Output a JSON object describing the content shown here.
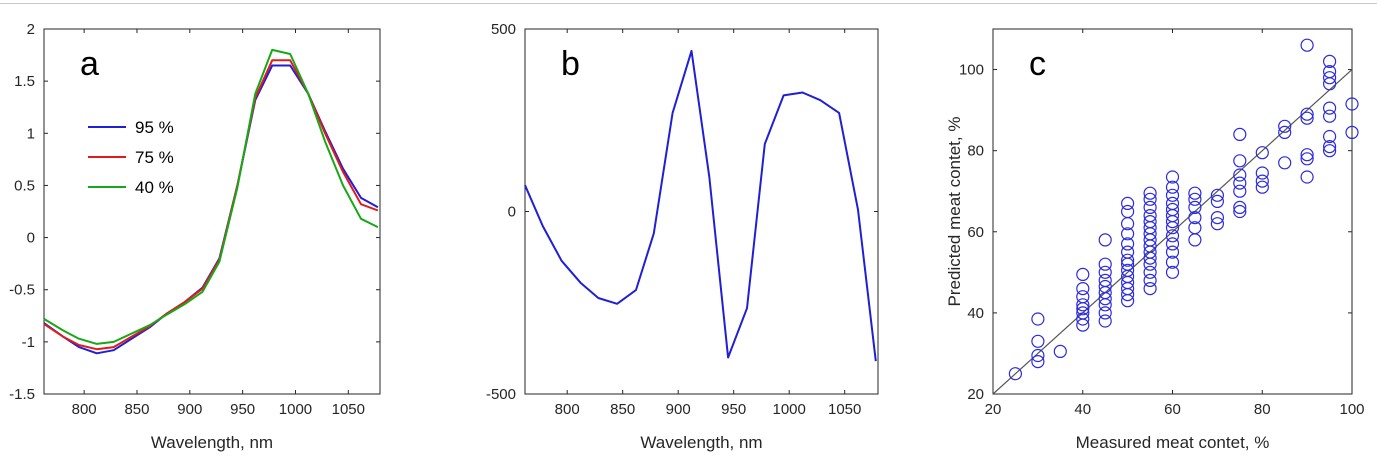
{
  "chart_data": [
    {
      "type": "line",
      "panel_label": "a",
      "xlabel": "Wavelength, nm",
      "ylabel": "",
      "xlim": [
        762,
        1080
      ],
      "ylim": [
        -1.5,
        2
      ],
      "xticks": [
        800,
        850,
        900,
        950,
        1000,
        1050
      ],
      "yticks": [
        -1.5,
        -1,
        -0.5,
        0,
        0.5,
        1,
        1.5,
        2
      ],
      "ytick_labels": [
        "-1.5",
        "-1",
        "-0.5",
        "0",
        "0.5",
        "1",
        "1.5",
        "2"
      ],
      "legend_position": "upper-left",
      "x": [
        762,
        780,
        795,
        812,
        828,
        845,
        862,
        878,
        895,
        912,
        928,
        945,
        962,
        978,
        995,
        1012,
        1028,
        1045,
        1062,
        1078
      ],
      "series": [
        {
          "name": "95 %",
          "color": "#1f1fd6",
          "values": [
            -0.82,
            -0.95,
            -1.05,
            -1.11,
            -1.08,
            -0.97,
            -0.86,
            -0.73,
            -0.62,
            -0.48,
            -0.2,
            0.5,
            1.32,
            1.65,
            1.65,
            1.38,
            1.02,
            0.66,
            0.38,
            0.29
          ]
        },
        {
          "name": "75 %",
          "color": "#e01b1b",
          "values": [
            -0.83,
            -0.95,
            -1.03,
            -1.07,
            -1.05,
            -0.95,
            -0.85,
            -0.73,
            -0.62,
            -0.49,
            -0.21,
            0.5,
            1.34,
            1.7,
            1.7,
            1.38,
            1.0,
            0.63,
            0.32,
            0.26
          ]
        },
        {
          "name": "40 %",
          "color": "#17a817",
          "values": [
            -0.78,
            -0.89,
            -0.97,
            -1.02,
            -1.0,
            -0.92,
            -0.84,
            -0.74,
            -0.64,
            -0.52,
            -0.23,
            0.48,
            1.38,
            1.8,
            1.76,
            1.38,
            0.92,
            0.5,
            0.18,
            0.1
          ]
        }
      ]
    },
    {
      "type": "line",
      "panel_label": "b",
      "xlabel": "Wavelength, nm",
      "ylabel": "",
      "xlim": [
        762,
        1080
      ],
      "ylim": [
        -500,
        500
      ],
      "xticks": [
        800,
        850,
        900,
        950,
        1000,
        1050
      ],
      "yticks": [
        -500,
        0,
        500
      ],
      "series": [
        {
          "color": "#1f1fd6",
          "x": [
            762,
            778,
            795,
            812,
            828,
            845,
            862,
            878,
            895,
            912,
            928,
            945,
            962,
            978,
            995,
            1012,
            1028,
            1045,
            1062,
            1078
          ],
          "values": [
            72,
            -40,
            -135,
            -195,
            -237,
            -253,
            -215,
            -60,
            270,
            440,
            95,
            -400,
            -265,
            185,
            318,
            326,
            305,
            270,
            5,
            -410
          ]
        }
      ]
    },
    {
      "type": "scatter",
      "panel_label": "c",
      "xlabel": "Measured meat contet, %",
      "ylabel": "Predicted meat contet, %",
      "xlim": [
        20,
        100
      ],
      "ylim": [
        20,
        110
      ],
      "xticks": [
        20,
        40,
        60,
        80,
        100
      ],
      "yticks": [
        20,
        40,
        60,
        80,
        100
      ],
      "marker_color": "#2a2ae0",
      "reference_line": {
        "x": [
          20,
          100
        ],
        "y": [
          20,
          100
        ],
        "color": "#555555"
      },
      "points": [
        [
          25,
          25
        ],
        [
          30,
          28
        ],
        [
          30,
          29.5
        ],
        [
          30,
          33
        ],
        [
          30,
          38.5
        ],
        [
          35,
          30.5
        ],
        [
          40,
          37
        ],
        [
          40,
          38.5
        ],
        [
          40,
          40
        ],
        [
          40,
          41
        ],
        [
          40,
          42
        ],
        [
          40,
          44
        ],
        [
          40,
          46
        ],
        [
          40,
          49.5
        ],
        [
          45,
          38
        ],
        [
          45,
          40
        ],
        [
          45,
          42
        ],
        [
          45,
          43.5
        ],
        [
          45,
          45
        ],
        [
          45,
          46.5
        ],
        [
          45,
          48
        ],
        [
          45,
          50
        ],
        [
          45,
          52
        ],
        [
          45,
          58
        ],
        [
          50,
          43
        ],
        [
          50,
          44.5
        ],
        [
          50,
          46
        ],
        [
          50,
          47.5
        ],
        [
          50,
          49
        ],
        [
          50,
          50.5
        ],
        [
          50,
          52
        ],
        [
          50,
          53
        ],
        [
          50,
          55
        ],
        [
          50,
          57
        ],
        [
          50,
          59.5
        ],
        [
          50,
          62
        ],
        [
          50,
          65
        ],
        [
          50,
          67
        ],
        [
          55,
          46
        ],
        [
          55,
          48
        ],
        [
          55,
          50
        ],
        [
          55,
          52
        ],
        [
          55,
          53.5
        ],
        [
          55,
          55
        ],
        [
          55,
          56.5
        ],
        [
          55,
          58
        ],
        [
          55,
          59.5
        ],
        [
          55,
          61
        ],
        [
          55,
          62.5
        ],
        [
          55,
          64
        ],
        [
          55,
          66
        ],
        [
          55,
          68
        ],
        [
          55,
          69.5
        ],
        [
          60,
          50
        ],
        [
          60,
          52.5
        ],
        [
          60,
          55
        ],
        [
          60,
          57
        ],
        [
          60,
          59
        ],
        [
          60,
          61
        ],
        [
          60,
          62.5
        ],
        [
          60,
          64
        ],
        [
          60,
          65.5
        ],
        [
          60,
          67
        ],
        [
          60,
          69
        ],
        [
          60,
          71
        ],
        [
          60,
          73.5
        ],
        [
          65,
          58
        ],
        [
          65,
          61
        ],
        [
          65,
          63.5
        ],
        [
          65,
          66
        ],
        [
          65,
          68
        ],
        [
          65,
          69.5
        ],
        [
          70,
          62
        ],
        [
          70,
          63.5
        ],
        [
          70,
          67.5
        ],
        [
          70,
          69
        ],
        [
          75,
          65
        ],
        [
          75,
          66
        ],
        [
          75,
          70
        ],
        [
          75,
          72
        ],
        [
          75,
          74
        ],
        [
          75,
          77.5
        ],
        [
          75,
          84
        ],
        [
          80,
          71
        ],
        [
          80,
          72.5
        ],
        [
          80,
          74.5
        ],
        [
          80,
          79.5
        ],
        [
          85,
          77
        ],
        [
          85,
          84.5
        ],
        [
          85,
          86
        ],
        [
          90,
          73.5
        ],
        [
          90,
          78
        ],
        [
          90,
          79
        ],
        [
          90,
          88
        ],
        [
          90,
          89
        ],
        [
          90,
          106
        ],
        [
          95,
          80
        ],
        [
          95,
          81
        ],
        [
          95,
          83.5
        ],
        [
          95,
          88.5
        ],
        [
          95,
          90.5
        ],
        [
          95,
          96.5
        ],
        [
          95,
          98
        ],
        [
          95,
          99.5
        ],
        [
          95,
          102
        ],
        [
          100,
          84.5
        ],
        [
          100,
          91.5
        ]
      ]
    }
  ]
}
